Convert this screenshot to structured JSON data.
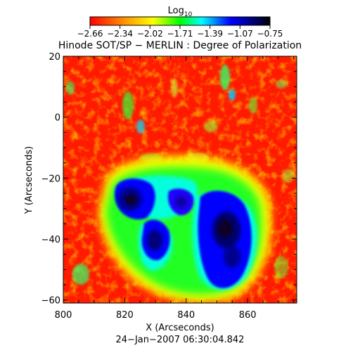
{
  "figure": {
    "colorbar_label_base": "Log",
    "colorbar_label_sub": "10",
    "colorbar_ticks": [
      "−2.66",
      "−2.34",
      "−2.02",
      "−1.71",
      "−1.39",
      "−1.07",
      "−0.75"
    ],
    "title": "Hinode SOT/SP − MERLIN : Degree of Polarization",
    "xlabel": "X (Arcseconds)",
    "ylabel": "Y (Arcseconds)",
    "x_ticks": [
      "800",
      "820",
      "840",
      "860"
    ],
    "y_ticks": [
      "20",
      "0",
      "−20",
      "−40",
      "−60"
    ],
    "timestamp": "24−Jan−2007 06:30:04.842"
  },
  "chart_data": {
    "type": "heatmap",
    "title": "Hinode SOT/SP − MERLIN : Degree of Polarization",
    "xlabel": "X (Arcseconds)",
    "ylabel": "Y (Arcseconds)",
    "xlim": [
      800,
      876
    ],
    "ylim": [
      -61,
      20
    ],
    "color_scale": "log10 degree of polarization",
    "clim": [
      -2.66,
      -0.75
    ],
    "colormap": [
      "#ff0000",
      "#ff8000",
      "#ffff00",
      "#00ff00",
      "#00ffff",
      "#0000ff",
      "#000080",
      "#000000"
    ],
    "features": [
      {
        "name": "",
        "center": [
          826,
          -27
        ],
        "value": -0.9
      },
      {
        "name": "",
        "center": [
          830,
          -41
        ],
        "value": -0.95
      },
      {
        "name": "",
        "center": [
          854,
          -42
        ],
        "value": -0.85
      },
      {
        "name": "",
        "center": [
          837,
          -27
        ],
        "value": -1.2
      }
    ]
  }
}
